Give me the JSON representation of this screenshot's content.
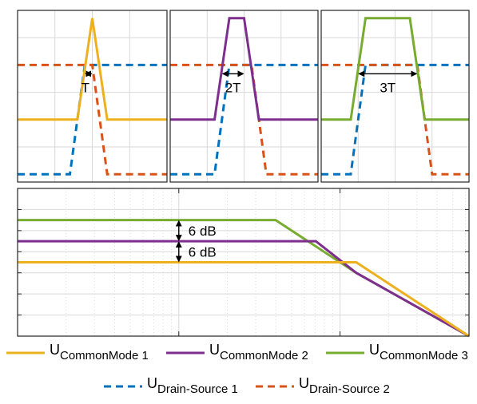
{
  "colors": {
    "cm1": "#EDB120",
    "cm2": "#7E2F8E",
    "cm3": "#77AC30",
    "ds1": "#0072BD",
    "ds2": "#D95319",
    "grid": "#d9d9d9",
    "arrow": "#000000"
  },
  "legend": {
    "row1": [
      {
        "key": "cm1",
        "main": "U",
        "sub": "CommonMode 1"
      },
      {
        "key": "cm2",
        "main": "U",
        "sub": "CommonMode 2"
      },
      {
        "key": "cm3",
        "main": "U",
        "sub": "CommonMode 3"
      }
    ],
    "row2": [
      {
        "key": "ds1",
        "main": "U",
        "sub": "Drain-Source 1"
      },
      {
        "key": "ds2",
        "main": "U",
        "sub": "Drain-Source 2"
      }
    ]
  },
  "chart_data": [
    {
      "type": "line",
      "panel": "time-domain-1",
      "xlim": [
        0,
        10
      ],
      "ylim": [
        -0.1,
        2.1
      ],
      "grid": true,
      "series": [
        {
          "key": "ds1",
          "dashed": true,
          "x": [
            0,
            3.5,
            4.5,
            10
          ],
          "y": [
            0,
            0,
            1.4,
            1.4
          ]
        },
        {
          "key": "ds2",
          "dashed": true,
          "x": [
            0,
            5.0,
            6.0,
            10
          ],
          "y": [
            1.4,
            1.4,
            0,
            0
          ]
        },
        {
          "key": "cm1",
          "dashed": false,
          "x": [
            0,
            4.0,
            5.0,
            6.0,
            10
          ],
          "y": [
            0.7,
            0.7,
            2.0,
            0.7,
            0.7
          ]
        }
      ],
      "annotation": {
        "text": "T",
        "x1": 4.5,
        "x2": 5.0,
        "y": 1.4
      }
    },
    {
      "type": "line",
      "panel": "time-domain-2",
      "xlim": [
        0,
        10
      ],
      "ylim": [
        -0.1,
        2.1
      ],
      "grid": true,
      "series": [
        {
          "key": "ds1",
          "dashed": true,
          "x": [
            0,
            3.0,
            4.0,
            10
          ],
          "y": [
            0,
            0,
            1.4,
            1.4
          ]
        },
        {
          "key": "ds2",
          "dashed": true,
          "x": [
            0,
            5.5,
            6.5,
            10
          ],
          "y": [
            1.4,
            1.4,
            0,
            0
          ]
        },
        {
          "key": "cm2",
          "dashed": false,
          "x": [
            0,
            3.0,
            4.0,
            5.0,
            6.0,
            10
          ],
          "y": [
            0.7,
            0.7,
            2.0,
            2.0,
            0.7,
            0.7
          ]
        }
      ],
      "annotation": {
        "text": "2T",
        "x1": 3.5,
        "x2": 5.0,
        "y": 1.4
      }
    },
    {
      "type": "line",
      "panel": "time-domain-3",
      "xlim": [
        0,
        10
      ],
      "ylim": [
        -0.1,
        2.1
      ],
      "grid": true,
      "series": [
        {
          "key": "ds1",
          "dashed": true,
          "x": [
            0,
            2.0,
            3.0,
            10
          ],
          "y": [
            0,
            0,
            1.4,
            1.4
          ]
        },
        {
          "key": "ds2",
          "dashed": true,
          "x": [
            0,
            6.5,
            7.5,
            10
          ],
          "y": [
            1.4,
            1.4,
            0,
            0
          ]
        },
        {
          "key": "cm3",
          "dashed": false,
          "x": [
            0,
            2.0,
            3.0,
            6.0,
            7.0,
            10
          ],
          "y": [
            0.7,
            0.7,
            2.0,
            2.0,
            0.7,
            0.7
          ]
        }
      ],
      "annotation": {
        "text": "3T",
        "x1": 2.5,
        "x2": 6.5,
        "y": 1.4
      }
    },
    {
      "type": "line",
      "panel": "frequency-spectrum",
      "xscale": "log",
      "xlim": [
        0,
        2.8
      ],
      "ylim": [
        0,
        7
      ],
      "grid": true,
      "series": [
        {
          "key": "cm3",
          "dashed": false,
          "x": [
            0,
            1.6,
            2.1,
            2.8
          ],
          "y": [
            5.5,
            5.5,
            3.0,
            0
          ]
        },
        {
          "key": "cm2",
          "dashed": false,
          "x": [
            0,
            1.85,
            2.1,
            2.8
          ],
          "y": [
            4.5,
            4.5,
            3.0,
            0
          ]
        },
        {
          "key": "cm1",
          "dashed": false,
          "x": [
            0,
            2.1,
            2.8
          ],
          "y": [
            3.5,
            3.5,
            0
          ]
        }
      ],
      "annotations": [
        {
          "text": "6 dB",
          "x": 1.0,
          "y_from": 4.5,
          "y_to": 5.5
        },
        {
          "text": "6 dB",
          "x": 1.0,
          "y_from": 3.5,
          "y_to": 4.5
        }
      ]
    }
  ]
}
